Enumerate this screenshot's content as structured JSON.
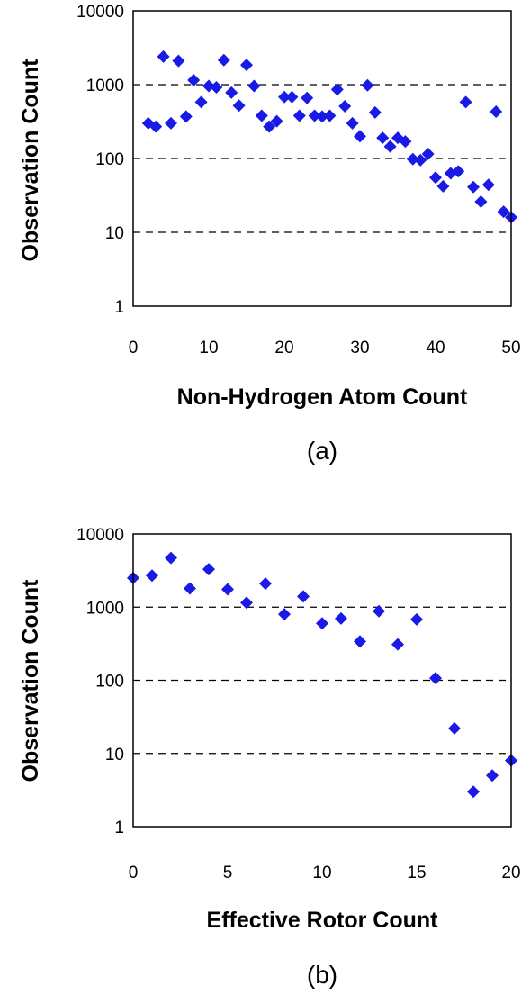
{
  "chart_data": [
    {
      "type": "scatter",
      "panel_label": "(a)",
      "xlabel": "Non-Hydrogen Atom Count",
      "ylabel": "Observation Count",
      "xlim": [
        0,
        50
      ],
      "ylim": [
        1,
        10000
      ],
      "y_scale": "log",
      "x_ticks": [
        "0",
        "10",
        "20",
        "30",
        "40",
        "50"
      ],
      "y_ticks": [
        "1",
        "10",
        "100",
        "1000",
        "10000"
      ],
      "grid": "horizontal dashed at 10, 100, 1000",
      "legend": "none",
      "marker_color": "#1a1ae6",
      "marker": "diamond",
      "points": [
        {
          "x": 2,
          "y": 300
        },
        {
          "x": 3,
          "y": 270
        },
        {
          "x": 4,
          "y": 2400
        },
        {
          "x": 5,
          "y": 300
        },
        {
          "x": 6,
          "y": 2100
        },
        {
          "x": 7,
          "y": 370
        },
        {
          "x": 8,
          "y": 1150
        },
        {
          "x": 9,
          "y": 580
        },
        {
          "x": 10,
          "y": 960
        },
        {
          "x": 11,
          "y": 920
        },
        {
          "x": 12,
          "y": 2150
        },
        {
          "x": 13,
          "y": 780
        },
        {
          "x": 14,
          "y": 520
        },
        {
          "x": 15,
          "y": 1850
        },
        {
          "x": 16,
          "y": 960
        },
        {
          "x": 17,
          "y": 380
        },
        {
          "x": 18,
          "y": 270
        },
        {
          "x": 19,
          "y": 320
        },
        {
          "x": 20,
          "y": 680
        },
        {
          "x": 21,
          "y": 680
        },
        {
          "x": 22,
          "y": 380
        },
        {
          "x": 23,
          "y": 660
        },
        {
          "x": 24,
          "y": 380
        },
        {
          "x": 25,
          "y": 370
        },
        {
          "x": 26,
          "y": 380
        },
        {
          "x": 27,
          "y": 860
        },
        {
          "x": 28,
          "y": 510
        },
        {
          "x": 29,
          "y": 300
        },
        {
          "x": 30,
          "y": 200
        },
        {
          "x": 31,
          "y": 980
        },
        {
          "x": 32,
          "y": 420
        },
        {
          "x": 33,
          "y": 190
        },
        {
          "x": 34,
          "y": 145
        },
        {
          "x": 35,
          "y": 190
        },
        {
          "x": 36,
          "y": 170
        },
        {
          "x": 37,
          "y": 98
        },
        {
          "x": 38,
          "y": 95
        },
        {
          "x": 39,
          "y": 115
        },
        {
          "x": 40,
          "y": 55
        },
        {
          "x": 41,
          "y": 42
        },
        {
          "x": 42,
          "y": 63
        },
        {
          "x": 43,
          "y": 67
        },
        {
          "x": 44,
          "y": 580
        },
        {
          "x": 45,
          "y": 41
        },
        {
          "x": 46,
          "y": 26
        },
        {
          "x": 47,
          "y": 44
        },
        {
          "x": 48,
          "y": 430
        },
        {
          "x": 49,
          "y": 19
        },
        {
          "x": 50,
          "y": 16
        }
      ]
    },
    {
      "type": "scatter",
      "panel_label": "(b)",
      "xlabel": "Effective Rotor Count",
      "ylabel": "Observation Count",
      "xlim": [
        0,
        20
      ],
      "ylim": [
        1,
        10000
      ],
      "y_scale": "log",
      "x_ticks": [
        "0",
        "5",
        "10",
        "15",
        "20"
      ],
      "y_ticks": [
        "1",
        "10",
        "100",
        "1000",
        "10000"
      ],
      "grid": "horizontal dashed at 10, 100, 1000",
      "legend": "none",
      "marker_color": "#1a1ae6",
      "marker": "diamond",
      "points": [
        {
          "x": 0,
          "y": 2500
        },
        {
          "x": 1,
          "y": 2700
        },
        {
          "x": 2,
          "y": 4700
        },
        {
          "x": 3,
          "y": 1800
        },
        {
          "x": 4,
          "y": 3300
        },
        {
          "x": 5,
          "y": 1750
        },
        {
          "x": 6,
          "y": 1150
        },
        {
          "x": 7,
          "y": 2100
        },
        {
          "x": 8,
          "y": 800
        },
        {
          "x": 9,
          "y": 1400
        },
        {
          "x": 10,
          "y": 600
        },
        {
          "x": 11,
          "y": 700
        },
        {
          "x": 12,
          "y": 340
        },
        {
          "x": 13,
          "y": 880
        },
        {
          "x": 14,
          "y": 310
        },
        {
          "x": 15,
          "y": 680
        },
        {
          "x": 16,
          "y": 107
        },
        {
          "x": 17,
          "y": 22
        },
        {
          "x": 18,
          "y": 3
        },
        {
          "x": 19,
          "y": 5
        },
        {
          "x": 20,
          "y": 8
        }
      ]
    }
  ]
}
